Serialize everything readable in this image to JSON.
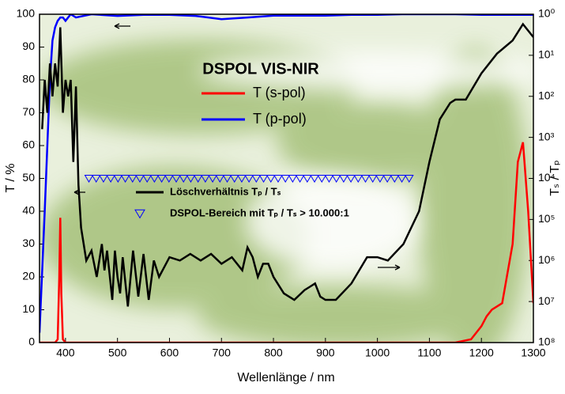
{
  "chart_data": {
    "type": "line",
    "title": "DSPOL VIS-NIR",
    "x_label": "Wellenlänge / nm",
    "y_label": "T / %",
    "y2_label": "Tₛ / Tₚ",
    "xlim": [
      350,
      1300
    ],
    "xticks": [
      400,
      500,
      600,
      700,
      800,
      900,
      1000,
      1100,
      1200,
      1300
    ],
    "ylim": [
      0,
      100
    ],
    "yticks": [
      0,
      10,
      20,
      30,
      40,
      50,
      60,
      70,
      80,
      90,
      100
    ],
    "y2lim": [
      100000000,
      1
    ],
    "y2scale": "log",
    "y2ticks": [
      {
        "value": 1,
        "label": "10⁰"
      },
      {
        "value": 10,
        "label": "10¹"
      },
      {
        "value": 100,
        "label": "10²"
      },
      {
        "value": 1000,
        "label": "10³"
      },
      {
        "value": 10000,
        "label": "10⁴"
      },
      {
        "value": 100000,
        "label": "10⁵"
      },
      {
        "value": 1000000,
        "label": "10⁶"
      },
      {
        "value": 10000000,
        "label": "10⁷"
      },
      {
        "value": 100000000,
        "label": "10⁸"
      }
    ],
    "series": [
      {
        "name": "T (s-pol)",
        "color": "#ff0000",
        "x": [
          350,
          380,
          385,
          388,
          390,
          392,
          395,
          400,
          1100,
          1150,
          1180,
          1200,
          1210,
          1220,
          1240,
          1260,
          1270,
          1280,
          1290,
          1300
        ],
        "values": [
          0,
          0,
          1,
          20,
          38,
          15,
          1,
          0,
          0,
          0,
          1,
          5,
          8,
          10,
          12,
          30,
          55,
          61,
          40,
          12
        ]
      },
      {
        "name": "T (p-pol)",
        "color": "#0000ff",
        "x": [
          350,
          360,
          370,
          375,
          380,
          385,
          390,
          395,
          400,
          410,
          420,
          450,
          500,
          550,
          600,
          650,
          700,
          750,
          800,
          850,
          900,
          950,
          1000,
          1050,
          1100,
          1150,
          1200,
          1250,
          1300
        ],
        "values": [
          3,
          40,
          80,
          92,
          96,
          98,
          99,
          99,
          98,
          100,
          99,
          100,
          99.5,
          99.8,
          99.8,
          99.5,
          98.5,
          99,
          99.6,
          99.6,
          99.6,
          99.8,
          99.8,
          100,
          100,
          100,
          99.8,
          99.8,
          99.8
        ]
      },
      {
        "name": "Löschverhältnis Tₚ / Tₛ",
        "color": "#000000",
        "axis": "y2",
        "x": [
          355,
          360,
          365,
          370,
          375,
          380,
          385,
          390,
          395,
          400,
          405,
          410,
          415,
          420,
          425,
          430,
          440,
          450,
          460,
          470,
          475,
          480,
          490,
          495,
          500,
          505,
          510,
          520,
          530,
          540,
          550,
          560,
          570,
          580,
          600,
          620,
          640,
          660,
          680,
          700,
          720,
          740,
          750,
          760,
          770,
          780,
          790,
          800,
          820,
          840,
          860,
          870,
          880,
          890,
          900,
          920,
          950,
          980,
          1000,
          1020,
          1050,
          1080,
          1100,
          1120,
          1140,
          1150,
          1170,
          1200,
          1230,
          1260,
          1280,
          1300
        ],
        "values": [
          631,
          39.8,
          251,
          15.8,
          100,
          15.8,
          57.5,
          2.09,
          251,
          39.8,
          100,
          39.8,
          3980,
          57.5,
          14500,
          158000,
          1000000,
          575000,
          2510000,
          398000,
          1740000,
          575000,
          9120000,
          575000,
          2510000,
          6310000,
          832000,
          13200000,
          575000,
          7590000,
          692000,
          9120000,
          1000000,
          2510000,
          832000,
          1000000,
          692000,
          1000000,
          692000,
          1200000,
          832000,
          1740000,
          479000,
          832000,
          2510000,
          1200000,
          1200000,
          2510000,
          6310000,
          9120000,
          5250000,
          4370000,
          3630000,
          7590000,
          9120000,
          9120000,
          3630000,
          832000,
          832000,
          1000000,
          398000,
          63100,
          3980,
          363,
          145,
          120,
          120,
          27.5,
          9.12,
          4.37,
          1.74,
          3.63
        ]
      },
      {
        "name": "DSPOL-Bereich mit Tₚ / Tₛ > 10.000:1",
        "color": "#0000ff",
        "marker": "triangle",
        "x": [
          445,
          459,
          473,
          487,
          501,
          515,
          529,
          543,
          557,
          571,
          585,
          599,
          613,
          627,
          641,
          655,
          669,
          683,
          697,
          711,
          725,
          739,
          753,
          767,
          781,
          795,
          809,
          823,
          837,
          851,
          865,
          879,
          893,
          907,
          921,
          935,
          949,
          963,
          977,
          991,
          1005,
          1019,
          1033,
          1047,
          1061
        ],
        "values": [
          50,
          50,
          50,
          50,
          50,
          50,
          50,
          50,
          50,
          50,
          50,
          50,
          50,
          50,
          50,
          50,
          50,
          50,
          50,
          50,
          50,
          50,
          50,
          50,
          50,
          50,
          50,
          50,
          50,
          50,
          50,
          50,
          50,
          50,
          50,
          50,
          50,
          50,
          50,
          50,
          50,
          50,
          50,
          50,
          50
        ]
      }
    ]
  }
}
